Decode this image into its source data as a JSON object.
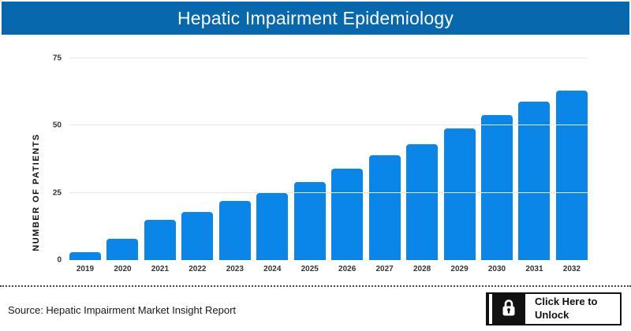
{
  "header": {
    "title": "Hepatic Impairment Epidemiology",
    "background_color": "#0868ae"
  },
  "chart_data": {
    "type": "bar",
    "title": "Hepatic Impairment Epidemiology",
    "categories": [
      "2019",
      "2020",
      "2021",
      "2022",
      "2023",
      "2024",
      "2025",
      "2026",
      "2027",
      "2028",
      "2029",
      "2030",
      "2031",
      "2032"
    ],
    "values": [
      3,
      8,
      15,
      18,
      22,
      25,
      29,
      34,
      39,
      43,
      49,
      54,
      59,
      63
    ],
    "xlabel": "",
    "ylabel": "NUMBER OF PATIENTS",
    "ylim": [
      0,
      75
    ],
    "yticks": [
      0,
      25,
      50,
      75
    ],
    "grid": true,
    "legend": false,
    "bar_color": "#0a85e8",
    "gridline_color": "#e7e7e7"
  },
  "footer": {
    "source": "Source: Hepatic Impairment Market Insight Report",
    "unlock_label": "Click Here to Unlock",
    "lock_icon": "lock-icon"
  }
}
